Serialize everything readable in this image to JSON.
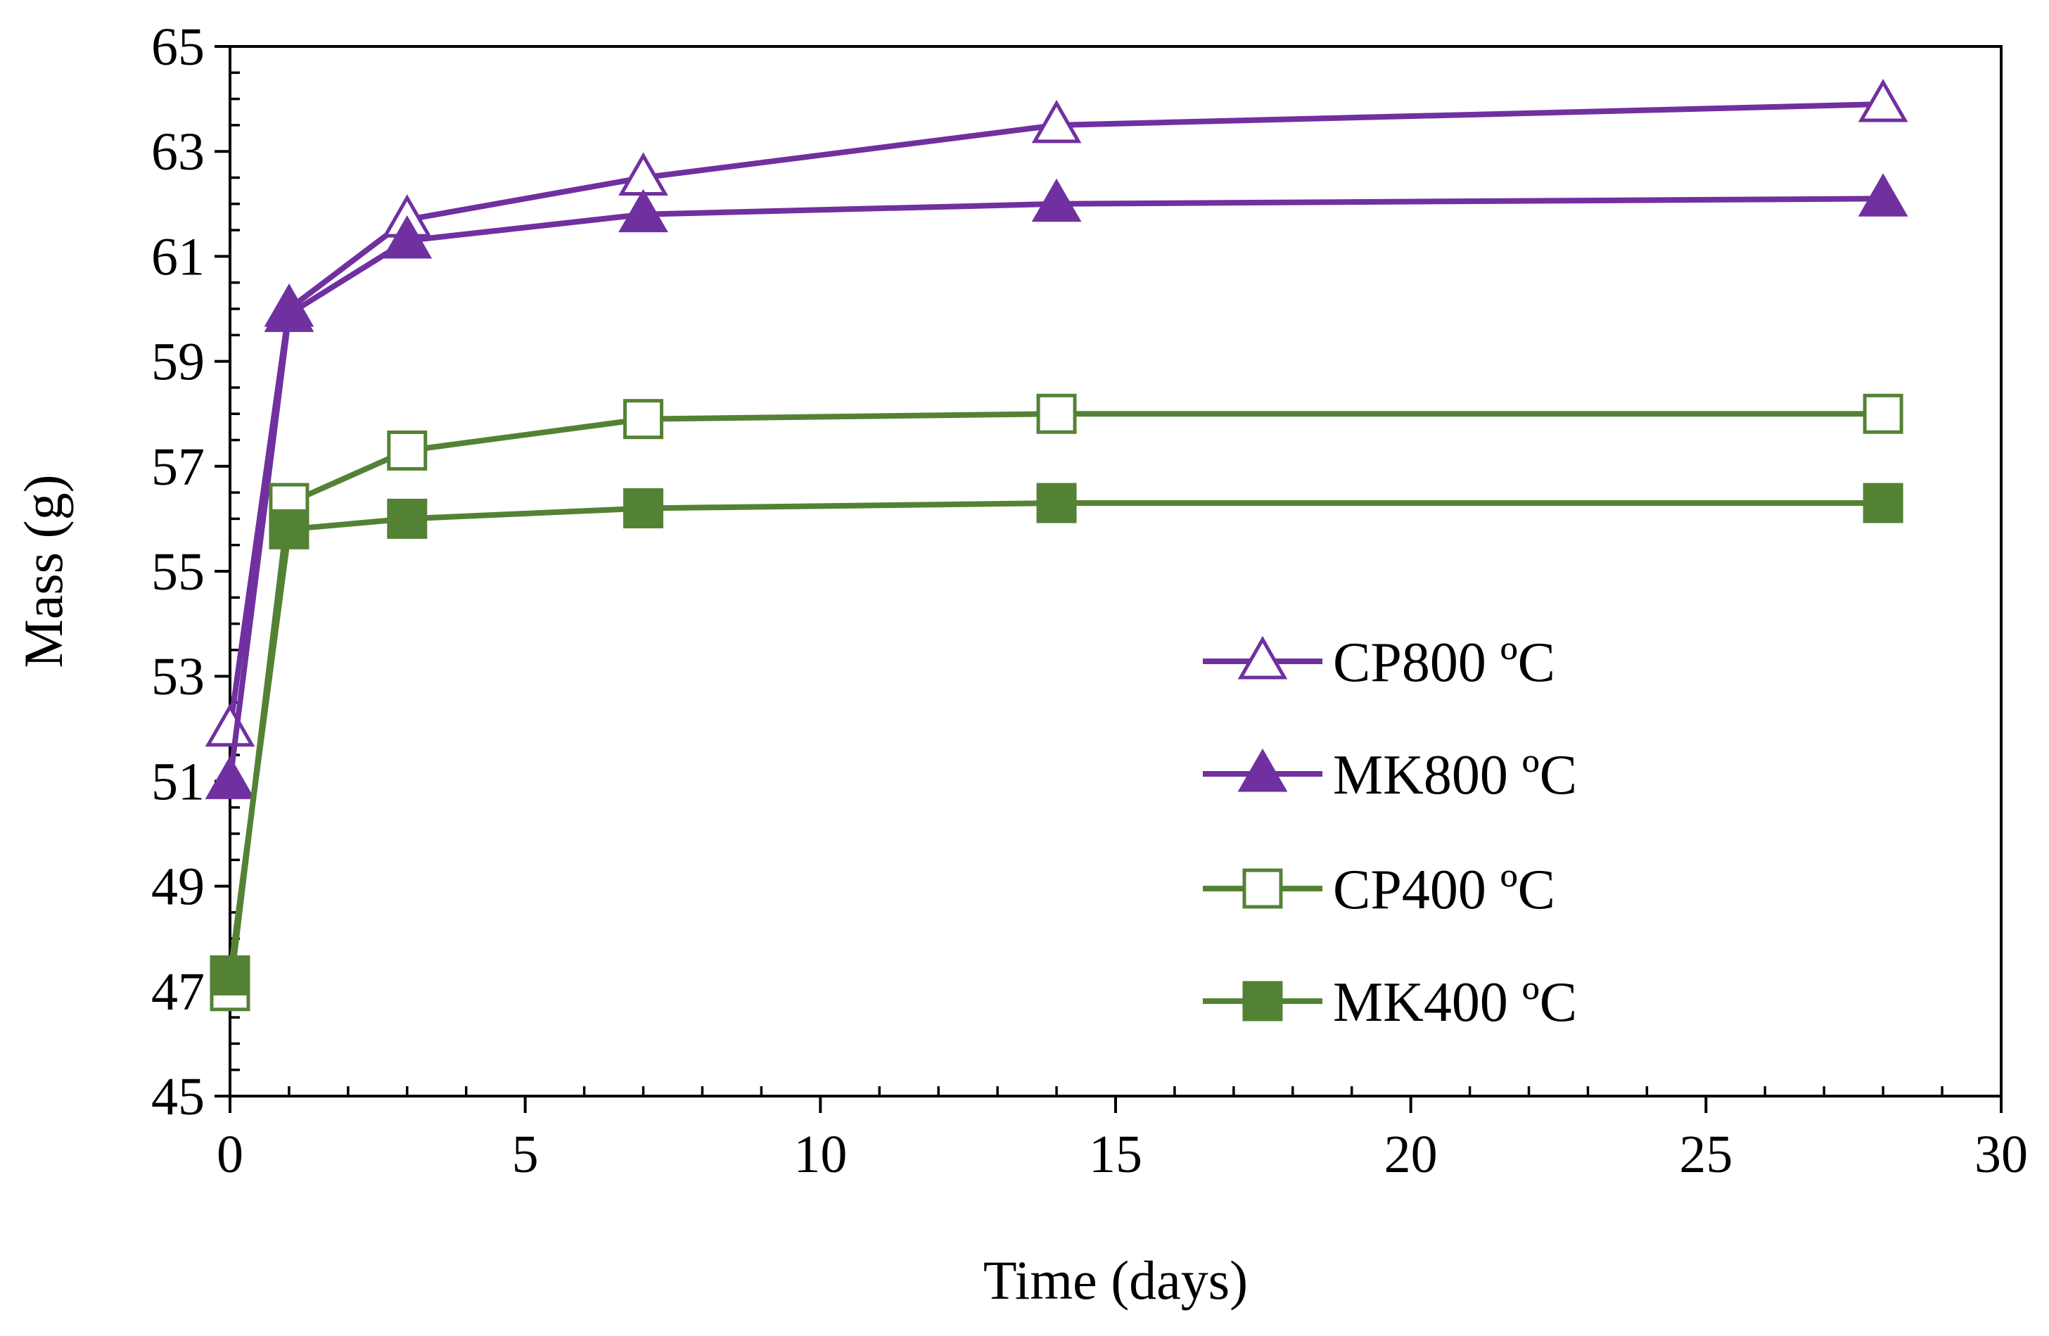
{
  "chart_data": {
    "type": "line",
    "title": "",
    "xlabel": "Time (days)",
    "ylabel": "Mass (g)",
    "xlim": [
      0,
      30
    ],
    "ylim": [
      45,
      65
    ],
    "xticks": [
      0,
      5,
      10,
      15,
      20,
      25,
      30
    ],
    "yticks": [
      45,
      47,
      49,
      51,
      53,
      55,
      57,
      59,
      61,
      63,
      65
    ],
    "xtick_labels": [
      "0",
      "5",
      "10",
      "15",
      "20",
      "25",
      "30"
    ],
    "ytick_labels": [
      "45",
      "47",
      "49",
      "51",
      "53",
      "55",
      "57",
      "59",
      "61",
      "63",
      "65"
    ],
    "grid": false,
    "legend_position": "lower-right",
    "x": [
      0,
      1,
      3,
      7,
      14,
      28
    ],
    "series": [
      {
        "name": "CP800 ºC",
        "values": [
          52.0,
          60.0,
          61.7,
          62.5,
          63.5,
          63.9
        ],
        "color": "#7030a0",
        "marker": "triangle-open"
      },
      {
        "name": "MK800 ºC",
        "values": [
          51.0,
          59.9,
          61.3,
          61.8,
          62.0,
          62.1
        ],
        "color": "#7030a0",
        "marker": "triangle-filled"
      },
      {
        "name": "CP400 ºC",
        "values": [
          47.0,
          56.3,
          57.3,
          57.9,
          58.0,
          58.0
        ],
        "color": "#548235",
        "marker": "square-open"
      },
      {
        "name": "MK400 ºC",
        "values": [
          47.3,
          55.8,
          56.0,
          56.2,
          56.3,
          56.3
        ],
        "color": "#548235",
        "marker": "square-filled"
      }
    ]
  }
}
